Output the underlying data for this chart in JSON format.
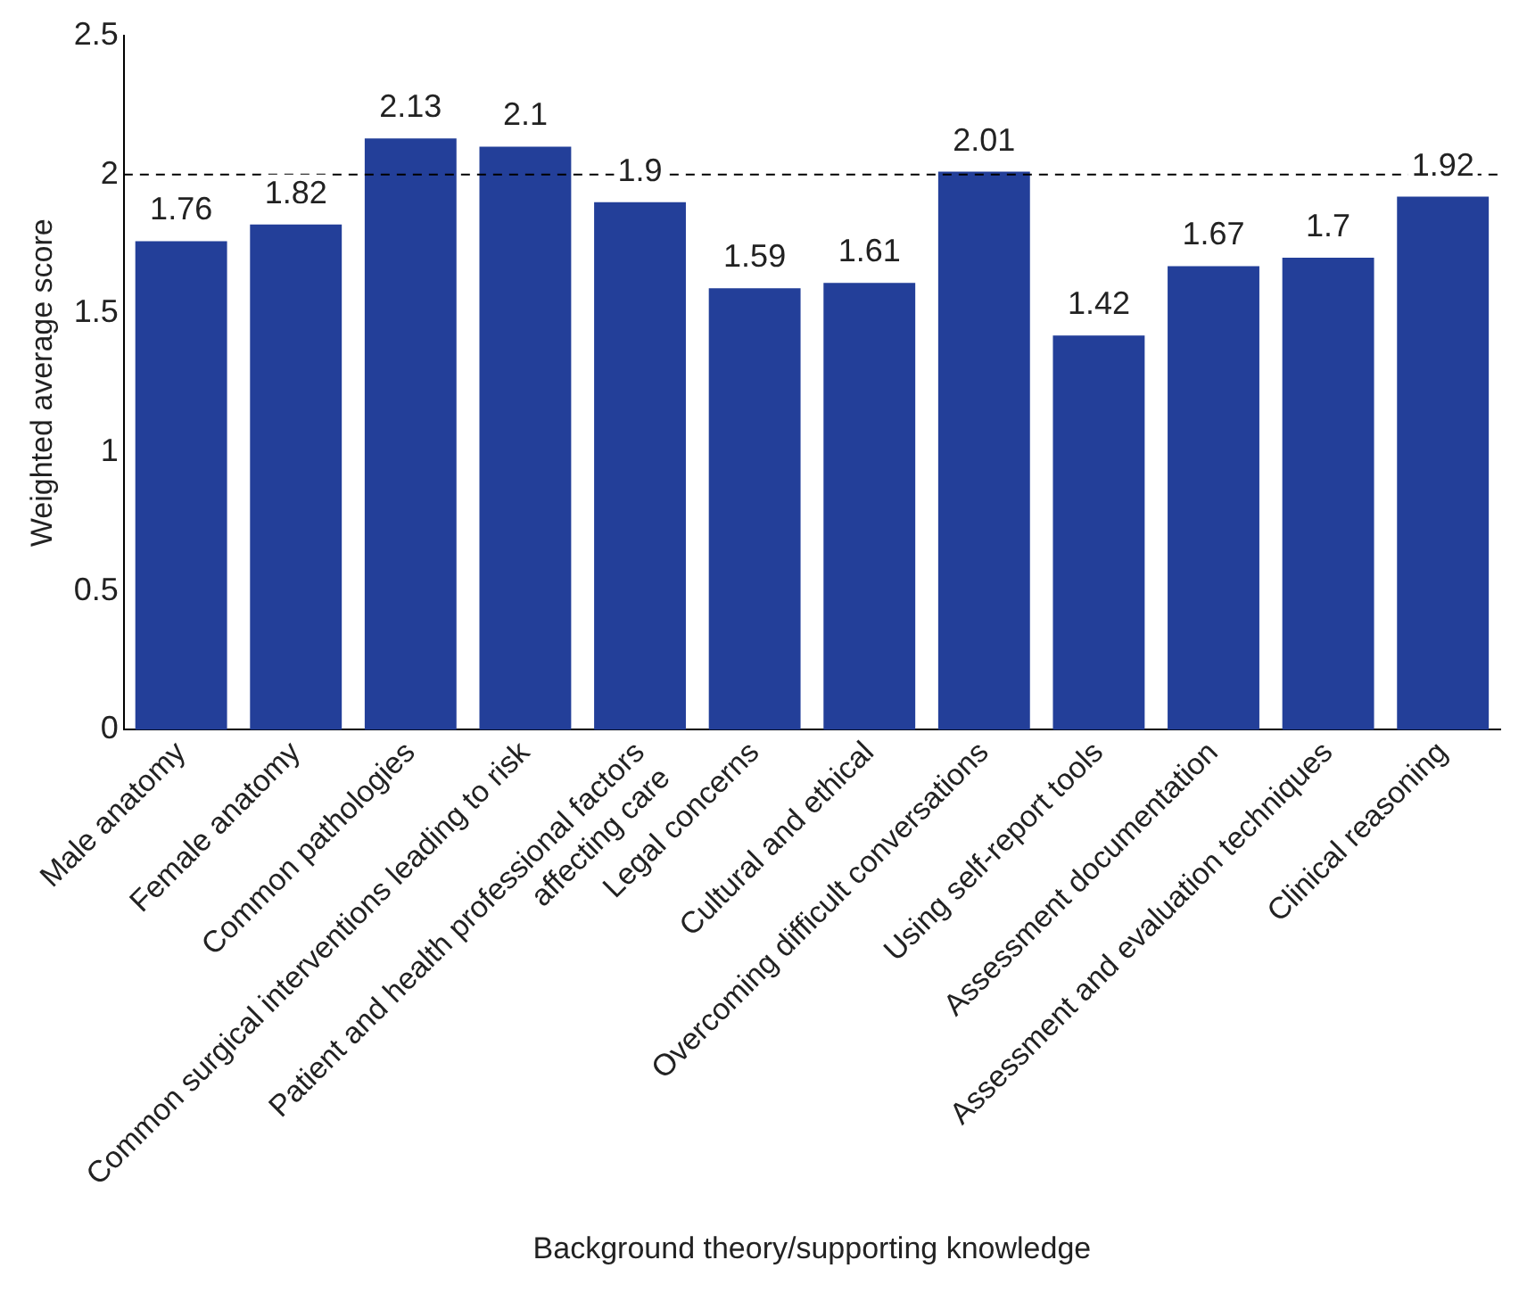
{
  "chart_data": {
    "type": "bar",
    "xlabel": "Background theory/supporting knowledge",
    "ylabel": "Weighted average score",
    "categories": [
      "Male anatomy",
      "Female anatomy",
      "Common pathologies",
      "Common surgical interventions leading to risk",
      "Patient and health professional factors affecting care",
      "Legal concerns",
      "Cultural and ethical",
      "Overcoming difficult conversations",
      "Using self-report tools",
      "Assessment documentation",
      "Assessment and evaluation techniques",
      "Clinical reasoning"
    ],
    "values": [
      1.76,
      1.82,
      2.13,
      2.1,
      1.9,
      1.59,
      1.61,
      2.01,
      1.42,
      1.67,
      1.7,
      1.92
    ],
    "color": "#233f99",
    "ylim": [
      0,
      2.5
    ],
    "yticks": [
      0,
      0.5,
      1,
      1.5,
      2,
      2.5
    ],
    "grid": false,
    "legend": false,
    "data_labels": true,
    "ref_lines": [
      {
        "axis": "y",
        "value": 2,
        "line_style": "dashed",
        "color": "#000000"
      }
    ]
  }
}
